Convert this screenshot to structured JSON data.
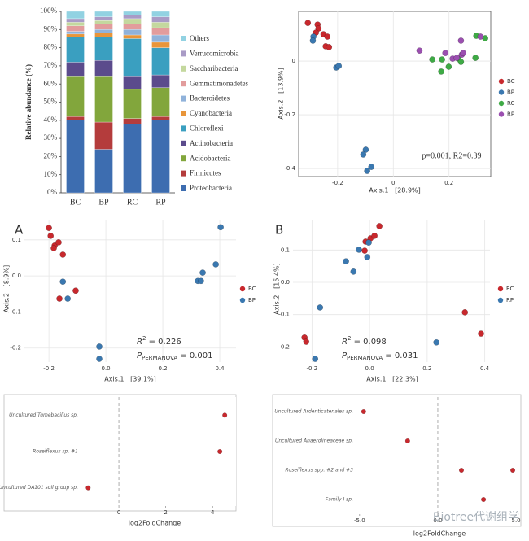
{
  "chart_data": [
    {
      "type": "bar",
      "stacked": true,
      "ylabel": "Relative abundance (%)",
      "categories": [
        "BC",
        "BP",
        "RC",
        "RP"
      ],
      "ylim": [
        0,
        100
      ],
      "yticks": [
        {
          "value": 0,
          "label": "0%"
        },
        {
          "value": 10,
          "label": "10%"
        },
        {
          "value": 20,
          "label": "20%"
        },
        {
          "value": 30,
          "label": "30%"
        },
        {
          "value": 40,
          "label": "40%"
        },
        {
          "value": 50,
          "label": "50%"
        },
        {
          "value": 60,
          "label": "60%"
        },
        {
          "value": 70,
          "label": "70%"
        },
        {
          "value": 80,
          "label": "80%"
        },
        {
          "value": 90,
          "label": "90%"
        },
        {
          "value": 100,
          "label": "100%"
        }
      ],
      "series": [
        {
          "name": "Proteobacteria",
          "color": "#3d6db0",
          "values": [
            40,
            24,
            38,
            40
          ]
        },
        {
          "name": "Firmicutes",
          "color": "#b43c3c",
          "values": [
            2,
            15,
            3,
            2
          ]
        },
        {
          "name": "Acidobacteria",
          "color": "#82a63c",
          "values": [
            22,
            25,
            16,
            16
          ]
        },
        {
          "name": "Actinobacteria",
          "color": "#5b4b8c",
          "values": [
            8,
            9,
            7,
            7
          ]
        },
        {
          "name": "Chloroflexi",
          "color": "#3a9fc0",
          "values": [
            14,
            13,
            21,
            15
          ]
        },
        {
          "name": "Cyanobacteria",
          "color": "#e8953a",
          "values": [
            1.5,
            2,
            2,
            3
          ]
        },
        {
          "name": "Bacteroidetes",
          "color": "#90b2da",
          "values": [
            1.5,
            2,
            3,
            4
          ]
        },
        {
          "name": "Gemmatimonadetes",
          "color": "#e29c9c",
          "values": [
            3,
            3,
            3,
            4
          ]
        },
        {
          "name": "Saccharibacteria",
          "color": "#c4d89e",
          "values": [
            2,
            2,
            3,
            3
          ]
        },
        {
          "name": "Verrucomicrobia",
          "color": "#a99bc6",
          "values": [
            2,
            2,
            2,
            3
          ]
        },
        {
          "name": "Others",
          "color": "#92d2e2",
          "values": [
            4,
            3,
            2,
            3
          ]
        }
      ]
    },
    {
      "type": "scatter",
      "xlabel": "Axis.1   [28.9%]",
      "ylabel": "Axis.2   [13.9%]",
      "annotation": "p=0.001, R2=0.39",
      "xlim": [
        -0.34,
        0.35
      ],
      "ylim": [
        -0.43,
        0.185
      ],
      "xticks": [
        -0.2,
        0,
        0.2
      ],
      "yticks": [
        0,
        -0.2,
        -0.4
      ],
      "grid": true,
      "series": [
        {
          "name": "BC",
          "color": "#c8282d",
          "x": [
            -0.307,
            -0.272,
            -0.269,
            -0.278,
            -0.251,
            -0.237,
            -0.243,
            -0.231
          ],
          "y": [
            0.142,
            0.136,
            0.121,
            0.106,
            0.1,
            0.091,
            0.055,
            0.052
          ]
        },
        {
          "name": "BP",
          "color": "#3a78b0",
          "x": [
            -0.287,
            -0.289,
            -0.205,
            -0.196,
            -0.099,
            -0.108,
            -0.079,
            -0.094
          ],
          "y": [
            0.091,
            0.076,
            -0.024,
            -0.018,
            -0.33,
            -0.348,
            -0.394,
            -0.409
          ]
        },
        {
          "name": "RC",
          "color": "#3eaa45",
          "x": [
            0.14,
            0.175,
            0.172,
            0.199,
            0.234,
            0.243,
            0.295,
            0.33,
            0.298
          ],
          "y": [
            0.006,
            0.006,
            -0.039,
            -0.021,
            0.009,
            -0.003,
            0.012,
            0.085,
            0.094
          ]
        },
        {
          "name": "RP",
          "color": "#9b4fb0",
          "x": [
            0.094,
            0.187,
            0.213,
            0.228,
            0.246,
            0.251,
            0.243,
            0.313
          ],
          "y": [
            0.039,
            0.03,
            0.009,
            0.012,
            0.024,
            0.03,
            0.076,
            0.091
          ]
        }
      ]
    },
    {
      "type": "scatter",
      "panel_label": "A",
      "xlabel": "Axis.1   [39.1%]",
      "ylabel": "Axis.2   [8.9%]",
      "r2": {
        "symbol": "R",
        "superscript": "2",
        "text": " = 0.226"
      },
      "p": {
        "symbol": "P",
        "subscript": "PERMANOVA",
        "text": " = 0.001"
      },
      "xlim": [
        -0.286,
        0.457
      ],
      "ylim": [
        -0.239,
        0.156
      ],
      "xticks": [
        -0.2,
        {
          "value": 0,
          "label": "0.0"
        },
        0.2,
        0.4
      ],
      "yticks": [
        -0.2,
        -0.1,
        {
          "value": 0,
          "label": "0.0"
        },
        0.1
      ],
      "grid": true,
      "series": [
        {
          "name": "BC",
          "color": "#c8282d",
          "x": [
            -0.194,
            -0.2,
            -0.18,
            -0.183,
            -0.166,
            -0.151,
            -0.106,
            -0.163
          ],
          "y": [
            0.111,
            0.133,
            0.084,
            0.077,
            0.093,
            0.059,
            -0.041,
            -0.063
          ]
        },
        {
          "name": "BP",
          "color": "#3a78b0",
          "x": [
            -0.151,
            -0.134,
            -0.023,
            -0.023,
            0.323,
            0.34,
            0.334,
            0.386,
            0.403
          ],
          "y": [
            -0.016,
            -0.063,
            -0.196,
            -0.23,
            -0.014,
            0.009,
            -0.014,
            0.032,
            0.135
          ]
        }
      ]
    },
    {
      "type": "scatter",
      "panel_label": "B",
      "xlabel": "Axis.1   [22.3%]",
      "ylabel": "Axis.2   [15.4%]",
      "r2": {
        "symbol": "R",
        "superscript": "2",
        "text": " = 0.098"
      },
      "p": {
        "symbol": "P",
        "subscript": "PERMANOVA",
        "text": " = 0.031"
      },
      "xlim": [
        -0.266,
        0.418
      ],
      "ylim": [
        -0.247,
        0.194
      ],
      "xticks": [
        -0.2,
        {
          "value": 0,
          "label": "0.0"
        },
        0.2,
        0.4
      ],
      "yticks": [
        -0.2,
        -0.1,
        {
          "value": 0,
          "label": "0.0"
        },
        0.1
      ],
      "grid": true,
      "series": [
        {
          "name": "RC",
          "color": "#c8282d",
          "x": [
            0.034,
            0.003,
            0.017,
            -0.014,
            -0.017,
            -0.226,
            -0.22,
            0.331,
            0.387
          ],
          "y": [
            0.174,
            0.136,
            0.144,
            0.126,
            0.098,
            -0.171,
            -0.184,
            -0.093,
            -0.159
          ]
        },
        {
          "name": "RP",
          "color": "#3a78b0",
          "x": [
            -0.082,
            -0.037,
            -0.003,
            -0.008,
            -0.056,
            -0.172,
            -0.189,
            0.232
          ],
          "y": [
            0.065,
            0.101,
            0.123,
            0.078,
            0.033,
            -0.078,
            -0.237,
            -0.186
          ]
        }
      ]
    },
    {
      "type": "dot",
      "xlabel": "log2FoldChange",
      "color": "#c8282d",
      "xlim": [
        -1.6,
        5
      ],
      "xticks": [
        0,
        2,
        4
      ],
      "categories": [
        "Uncultured Tumebacillus sp.",
        "Roseiflexus sp. #1",
        "Uncultured DA101 soil group sp."
      ],
      "values": [
        [
          4.52
        ],
        [
          4.31
        ],
        [
          -1.31
        ]
      ]
    },
    {
      "type": "dot",
      "xlabel": "log2FoldChange",
      "color": "#c8282d",
      "xlim": [
        -5.2,
        5.1
      ],
      "xticks": [
        {
          "value": -5,
          "label": "-5.0"
        },
        {
          "value": 0,
          "label": "0.0"
        },
        {
          "value": 5,
          "label": "5.0"
        }
      ],
      "categories": [
        "Uncultured Ardenticatenales sp.",
        "Uncultured Anaerolineaceae sp.",
        "Roseiflexus spp. #2 and #3",
        "Family I sp."
      ],
      "values": [
        [
          -4.74
        ],
        [
          -1.93
        ],
        [
          1.51,
          4.79
        ],
        [
          2.92
        ]
      ]
    }
  ],
  "watermark": "Biotree代谢组学"
}
